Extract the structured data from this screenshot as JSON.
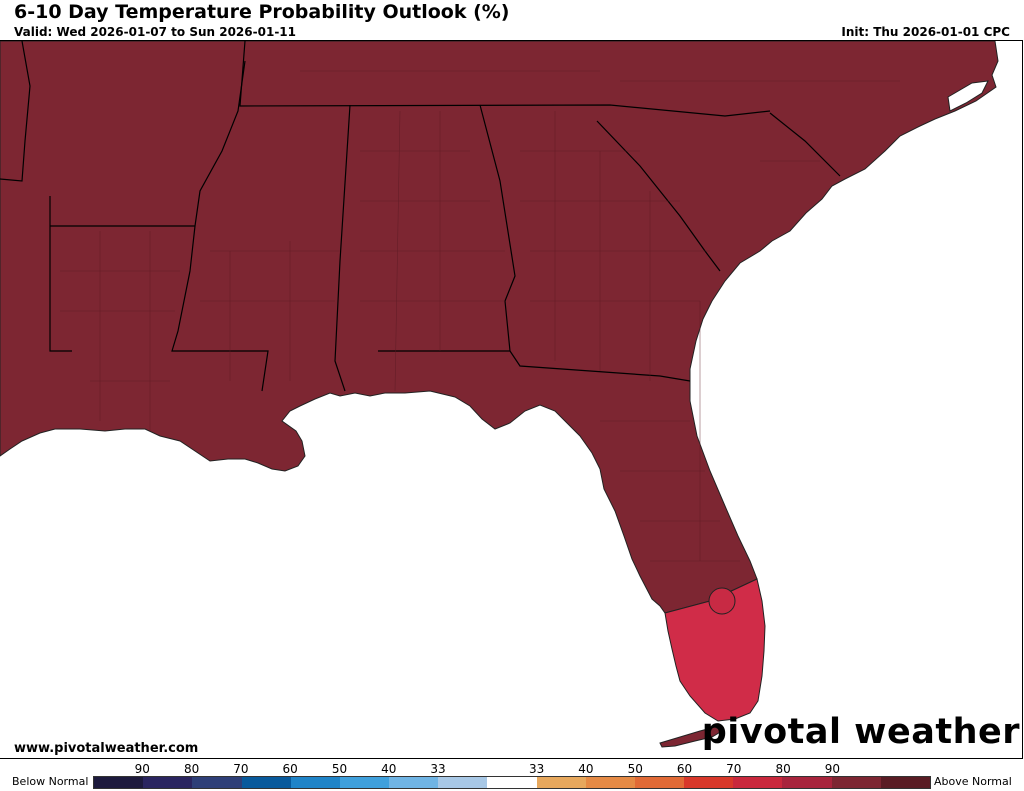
{
  "header": {
    "title": "6-10 Day Temperature Probability Outlook (%)",
    "valid": "Valid: Wed 2026-01-07 to Sun 2026-01-11",
    "init": "Init: Thu 2026-01-01 CPC"
  },
  "map": {
    "region": "Southeastern United States",
    "categories": [
      {
        "category": "above-normal",
        "probability_bin": "80-90",
        "color": "#7d2632",
        "areas": [
          "Louisiana",
          "Mississippi",
          "Alabama",
          "Georgia",
          "South Carolina",
          "North Carolina",
          "Arkansas",
          "Tennessee",
          "Florida (north and central)"
        ]
      },
      {
        "category": "above-normal",
        "probability_bin": "70-80",
        "color": "#d02c48",
        "areas": [
          "South Florida",
          "Florida Keys"
        ]
      }
    ],
    "ocean_color": "#ffffff",
    "land_color": "#7d2632"
  },
  "footer": {
    "website": "www.pivotalweather.com",
    "brand": "pivotal weather"
  },
  "legend": {
    "left_label": "Below Normal",
    "right_label": "Above Normal",
    "tick_labels": [
      "90",
      "80",
      "70",
      "60",
      "50",
      "40",
      "33",
      "33",
      "40",
      "50",
      "60",
      "70",
      "80",
      "90"
    ],
    "colors": [
      "#1d1a3d",
      "#2a2560",
      "#2e3f78",
      "#085a9c",
      "#1f84c8",
      "#3fa0dc",
      "#6fb4e4",
      "#a8c8e6",
      "#ffffff",
      "#e7a85d",
      "#e58a45",
      "#e16a36",
      "#d8382a",
      "#c9283c",
      "#a8243c",
      "#7d2632",
      "#5a1c24"
    ]
  }
}
